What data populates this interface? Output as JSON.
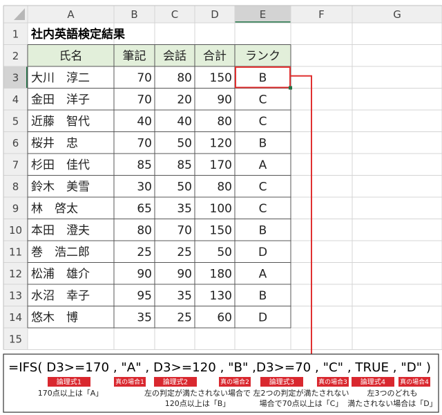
{
  "columns": [
    "A",
    "B",
    "C",
    "D",
    "E",
    "F",
    "G"
  ],
  "row_numbers": [
    1,
    2,
    3,
    4,
    5,
    6,
    7,
    8,
    9,
    10,
    11,
    12,
    13,
    14,
    15
  ],
  "title": "社内英語検定結果",
  "table": {
    "header": [
      "氏名",
      "筆記",
      "会話",
      "合計",
      "ランク"
    ],
    "rows": [
      [
        "大川　淳二",
        70,
        80,
        150,
        "B"
      ],
      [
        "金田　洋子",
        70,
        20,
        90,
        "C"
      ],
      [
        "近藤　智代",
        40,
        40,
        80,
        "C"
      ],
      [
        "桜井　忠",
        70,
        50,
        120,
        "B"
      ],
      [
        "杉田　佳代",
        85,
        85,
        170,
        "A"
      ],
      [
        "鈴木　美雪",
        30,
        50,
        80,
        "C"
      ],
      [
        "林　啓太",
        65,
        35,
        100,
        "C"
      ],
      [
        "本田　澄夫",
        80,
        70,
        150,
        "B"
      ],
      [
        "巻　浩二郎",
        25,
        25,
        50,
        "D"
      ],
      [
        "松浦　雄介",
        90,
        90,
        180,
        "A"
      ],
      [
        "水沼　幸子",
        95,
        35,
        130,
        "B"
      ],
      [
        "悠木　博",
        35,
        25,
        60,
        "D"
      ]
    ]
  },
  "formula": {
    "text": "=IFS( D3>=170 , \"A\" , D3>=120 , \"B\" ,D3>=70 , \"C\" , TRUE , \"D\" )",
    "tags": [
      "論理式1",
      "真の場合1",
      "論理式2",
      "真の場合2",
      "論理式3",
      "真の場合3",
      "論理式4",
      "真の場合4"
    ],
    "notes": [
      [
        "170点以上は「A」"
      ],
      [
        "左の判定が満たされない場合で",
        "120点以上は「B」"
      ],
      [
        "左2つの判定が満たされない",
        "場合で70点以上は「C」"
      ],
      [
        "左3つのどれも",
        "満たされない場合は「D」"
      ]
    ]
  }
}
